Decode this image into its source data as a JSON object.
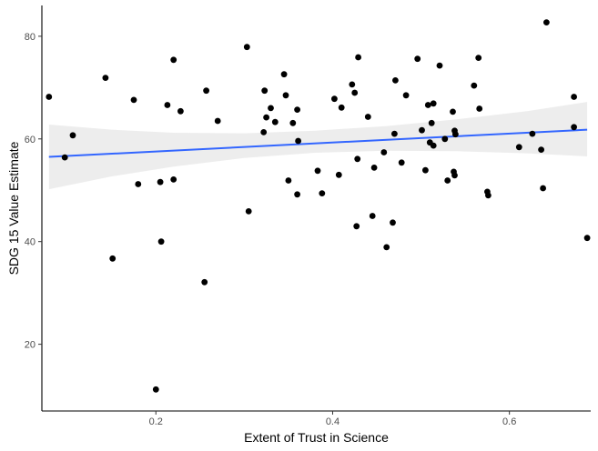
{
  "chart_data": {
    "type": "scatter",
    "title": "",
    "xlabel": "Extent of Trust in Science",
    "ylabel": "SDG 15 Value Estimate",
    "xlim": [
      0.071,
      0.692
    ],
    "ylim": [
      7,
      86
    ],
    "x_ticks": [
      0.2,
      0.4,
      0.6
    ],
    "x_tick_labels": [
      "0.2",
      "0.4",
      "0.6"
    ],
    "y_ticks": [
      20,
      40,
      60,
      80
    ],
    "y_tick_labels": [
      "20",
      "40",
      "60",
      "80"
    ],
    "grid": false,
    "legend": "none",
    "colors": {
      "points": "#000000",
      "fit_line": "#3366ff",
      "ribbon": "#ebebeb",
      "axis": "#000000"
    },
    "points": [
      {
        "x": 0.079,
        "y": 68.2
      },
      {
        "x": 0.097,
        "y": 56.4
      },
      {
        "x": 0.106,
        "y": 60.7
      },
      {
        "x": 0.143,
        "y": 71.9
      },
      {
        "x": 0.151,
        "y": 36.7
      },
      {
        "x": 0.175,
        "y": 67.6
      },
      {
        "x": 0.18,
        "y": 51.2
      },
      {
        "x": 0.2,
        "y": 11.2
      },
      {
        "x": 0.205,
        "y": 51.6
      },
      {
        "x": 0.206,
        "y": 40.0
      },
      {
        "x": 0.213,
        "y": 66.6
      },
      {
        "x": 0.22,
        "y": 75.4
      },
      {
        "x": 0.22,
        "y": 52.1
      },
      {
        "x": 0.228,
        "y": 65.4
      },
      {
        "x": 0.255,
        "y": 32.1
      },
      {
        "x": 0.257,
        "y": 69.4
      },
      {
        "x": 0.27,
        "y": 63.5
      },
      {
        "x": 0.303,
        "y": 77.9
      },
      {
        "x": 0.305,
        "y": 45.9
      },
      {
        "x": 0.322,
        "y": 61.3
      },
      {
        "x": 0.323,
        "y": 69.4
      },
      {
        "x": 0.325,
        "y": 64.2
      },
      {
        "x": 0.33,
        "y": 66.0
      },
      {
        "x": 0.335,
        "y": 63.3
      },
      {
        "x": 0.345,
        "y": 72.6
      },
      {
        "x": 0.347,
        "y": 68.5
      },
      {
        "x": 0.35,
        "y": 51.9
      },
      {
        "x": 0.355,
        "y": 63.1
      },
      {
        "x": 0.36,
        "y": 65.7
      },
      {
        "x": 0.361,
        "y": 59.6
      },
      {
        "x": 0.36,
        "y": 49.2
      },
      {
        "x": 0.383,
        "y": 53.8
      },
      {
        "x": 0.388,
        "y": 49.4
      },
      {
        "x": 0.402,
        "y": 67.8
      },
      {
        "x": 0.407,
        "y": 53.0
      },
      {
        "x": 0.41,
        "y": 66.1
      },
      {
        "x": 0.422,
        "y": 70.6
      },
      {
        "x": 0.425,
        "y": 69.0
      },
      {
        "x": 0.427,
        "y": 43.0
      },
      {
        "x": 0.429,
        "y": 75.9
      },
      {
        "x": 0.428,
        "y": 56.1
      },
      {
        "x": 0.44,
        "y": 64.3
      },
      {
        "x": 0.445,
        "y": 45.0
      },
      {
        "x": 0.447,
        "y": 54.4
      },
      {
        "x": 0.458,
        "y": 57.4
      },
      {
        "x": 0.461,
        "y": 38.9
      },
      {
        "x": 0.468,
        "y": 43.7
      },
      {
        "x": 0.47,
        "y": 61.0
      },
      {
        "x": 0.471,
        "y": 71.4
      },
      {
        "x": 0.478,
        "y": 55.4
      },
      {
        "x": 0.483,
        "y": 68.5
      },
      {
        "x": 0.496,
        "y": 75.6
      },
      {
        "x": 0.501,
        "y": 61.7
      },
      {
        "x": 0.505,
        "y": 53.9
      },
      {
        "x": 0.508,
        "y": 66.6
      },
      {
        "x": 0.51,
        "y": 59.3
      },
      {
        "x": 0.512,
        "y": 63.1
      },
      {
        "x": 0.514,
        "y": 66.9
      },
      {
        "x": 0.514,
        "y": 58.7
      },
      {
        "x": 0.521,
        "y": 74.3
      },
      {
        "x": 0.527,
        "y": 60.0
      },
      {
        "x": 0.53,
        "y": 51.9
      },
      {
        "x": 0.536,
        "y": 65.3
      },
      {
        "x": 0.537,
        "y": 53.6
      },
      {
        "x": 0.538,
        "y": 52.9
      },
      {
        "x": 0.538,
        "y": 61.6
      },
      {
        "x": 0.539,
        "y": 60.9
      },
      {
        "x": 0.56,
        "y": 70.4
      },
      {
        "x": 0.565,
        "y": 75.8
      },
      {
        "x": 0.566,
        "y": 65.9
      },
      {
        "x": 0.575,
        "y": 49.7
      },
      {
        "x": 0.576,
        "y": 49.0
      },
      {
        "x": 0.611,
        "y": 58.4
      },
      {
        "x": 0.626,
        "y": 61.0
      },
      {
        "x": 0.636,
        "y": 57.9
      },
      {
        "x": 0.638,
        "y": 50.4
      },
      {
        "x": 0.642,
        "y": 82.7
      },
      {
        "x": 0.673,
        "y": 68.2
      },
      {
        "x": 0.673,
        "y": 62.3
      },
      {
        "x": 0.688,
        "y": 40.7
      }
    ],
    "fit": {
      "method": "linear",
      "x": [
        0.079,
        0.688
      ],
      "y": [
        56.5,
        61.8
      ]
    },
    "ribbon": [
      {
        "x": 0.079,
        "lo": 50.2,
        "hi": 62.8
      },
      {
        "x": 0.15,
        "lo": 52.7,
        "hi": 61.8
      },
      {
        "x": 0.22,
        "lo": 54.6,
        "hi": 61.2
      },
      {
        "x": 0.3,
        "lo": 56.3,
        "hi": 61.1
      },
      {
        "x": 0.38,
        "lo": 57.3,
        "hi": 61.6
      },
      {
        "x": 0.46,
        "lo": 57.7,
        "hi": 62.5
      },
      {
        "x": 0.54,
        "lo": 57.6,
        "hi": 63.8
      },
      {
        "x": 0.62,
        "lo": 57.2,
        "hi": 65.4
      },
      {
        "x": 0.688,
        "lo": 56.6,
        "hi": 67.2
      }
    ]
  }
}
